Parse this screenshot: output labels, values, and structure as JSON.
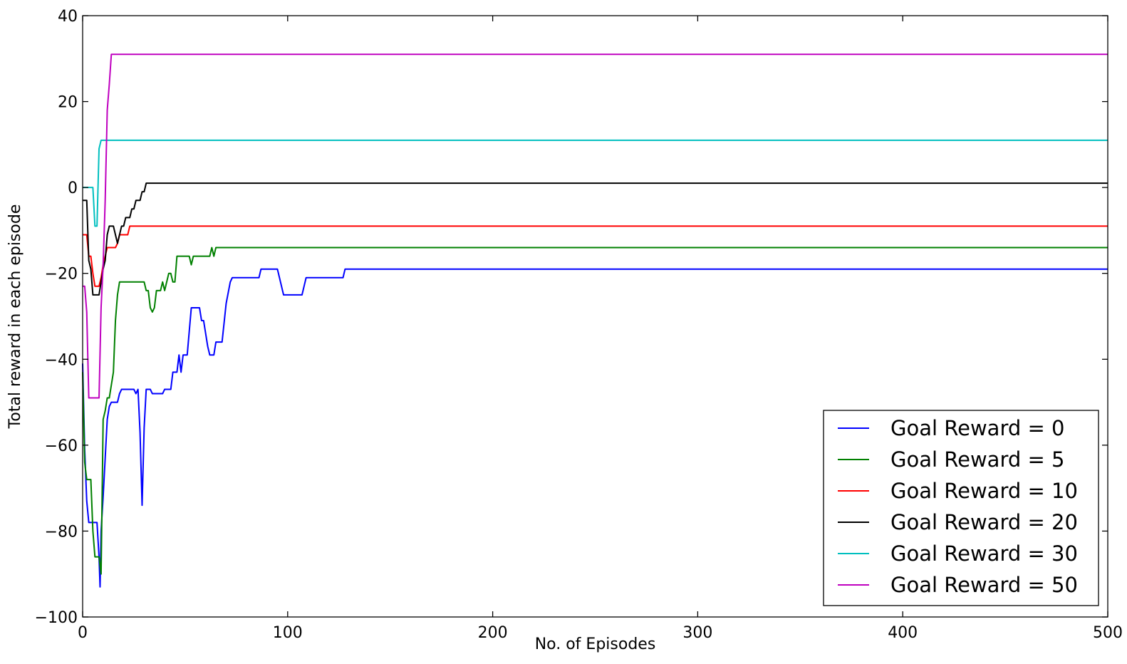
{
  "chart_data": {
    "type": "line",
    "title": "",
    "xlabel": "No. of Episodes",
    "ylabel": "Total reward in each episode",
    "xlim": [
      0,
      500
    ],
    "ylim": [
      -100,
      40
    ],
    "x_ticks": [
      0,
      100,
      200,
      300,
      400,
      500
    ],
    "y_ticks": [
      -100,
      -80,
      -60,
      -40,
      -20,
      0,
      20,
      40
    ],
    "x_tick_labels": [
      "0",
      "100",
      "200",
      "300",
      "400",
      "500"
    ],
    "y_tick_labels": [
      "−100",
      "−80",
      "−60",
      "−40",
      "−20",
      "0",
      "20",
      "40"
    ],
    "grid": false,
    "legend_position": "lower-right",
    "series": [
      {
        "name": "Goal Reward = 0",
        "color": "#0000ff",
        "points": [
          [
            0,
            -41
          ],
          [
            1,
            -61
          ],
          [
            2,
            -73
          ],
          [
            3,
            -78
          ],
          [
            4,
            -78
          ],
          [
            5,
            -78
          ],
          [
            6,
            -78
          ],
          [
            7,
            -78
          ],
          [
            8,
            -86
          ],
          [
            8.5,
            -93
          ],
          [
            9,
            -80
          ],
          [
            10,
            -72
          ],
          [
            11,
            -63
          ],
          [
            12,
            -54
          ],
          [
            13,
            -51
          ],
          [
            14,
            -50
          ],
          [
            17,
            -50
          ],
          [
            18,
            -48
          ],
          [
            19,
            -47
          ],
          [
            25,
            -47
          ],
          [
            26,
            -48
          ],
          [
            27,
            -47
          ],
          [
            28,
            -57
          ],
          [
            29,
            -74
          ],
          [
            30,
            -56
          ],
          [
            31,
            -47
          ],
          [
            33,
            -47
          ],
          [
            34,
            -48
          ],
          [
            39,
            -48
          ],
          [
            40,
            -47
          ],
          [
            43,
            -47
          ],
          [
            44,
            -43
          ],
          [
            46,
            -43
          ],
          [
            47,
            -39
          ],
          [
            48,
            -43
          ],
          [
            49,
            -39
          ],
          [
            51,
            -39
          ],
          [
            53,
            -28
          ],
          [
            57,
            -28
          ],
          [
            58,
            -31
          ],
          [
            59,
            -31
          ],
          [
            61,
            -37
          ],
          [
            62,
            -39
          ],
          [
            64,
            -39
          ],
          [
            65,
            -36
          ],
          [
            68,
            -36
          ],
          [
            70,
            -27
          ],
          [
            72,
            -22
          ],
          [
            73,
            -21
          ],
          [
            86,
            -21
          ],
          [
            87,
            -19
          ],
          [
            95,
            -19
          ],
          [
            97,
            -23
          ],
          [
            98,
            -25
          ],
          [
            107,
            -25
          ],
          [
            108,
            -23
          ],
          [
            109,
            -21
          ],
          [
            127,
            -21
          ],
          [
            128,
            -19
          ],
          [
            500,
            -19
          ]
        ]
      },
      {
        "name": "Goal Reward = 5",
        "color": "#008000",
        "points": [
          [
            0,
            -43
          ],
          [
            1,
            -64
          ],
          [
            2,
            -68
          ],
          [
            4,
            -68
          ],
          [
            5,
            -80
          ],
          [
            6,
            -86
          ],
          [
            8,
            -86
          ],
          [
            9,
            -90
          ],
          [
            10,
            -54
          ],
          [
            11,
            -52
          ],
          [
            12,
            -49
          ],
          [
            13,
            -49
          ],
          [
            14,
            -46
          ],
          [
            15,
            -43
          ],
          [
            16,
            -31
          ],
          [
            17,
            -25
          ],
          [
            18,
            -22
          ],
          [
            30,
            -22
          ],
          [
            31,
            -24
          ],
          [
            32,
            -24
          ],
          [
            33,
            -28
          ],
          [
            34,
            -29
          ],
          [
            35,
            -28
          ],
          [
            36,
            -24
          ],
          [
            38,
            -24
          ],
          [
            39,
            -22
          ],
          [
            40,
            -24
          ],
          [
            41,
            -22
          ],
          [
            42,
            -20
          ],
          [
            43,
            -20
          ],
          [
            44,
            -22
          ],
          [
            45,
            -22
          ],
          [
            46,
            -16
          ],
          [
            52,
            -16
          ],
          [
            53,
            -18
          ],
          [
            54,
            -16
          ],
          [
            62,
            -16
          ],
          [
            63,
            -14
          ],
          [
            64,
            -16
          ],
          [
            65,
            -14
          ],
          [
            500,
            -14
          ]
        ]
      },
      {
        "name": "Goal Reward = 10",
        "color": "#ff0000",
        "points": [
          [
            0,
            -11
          ],
          [
            1,
            -11
          ],
          [
            2,
            -11
          ],
          [
            3,
            -16
          ],
          [
            4,
            -16
          ],
          [
            5,
            -20
          ],
          [
            6,
            -23
          ],
          [
            8,
            -23
          ],
          [
            9,
            -21
          ],
          [
            10,
            -18
          ],
          [
            11,
            -16
          ],
          [
            12,
            -14
          ],
          [
            16,
            -14
          ],
          [
            17,
            -13
          ],
          [
            18,
            -11
          ],
          [
            22,
            -11
          ],
          [
            23,
            -9
          ],
          [
            500,
            -9
          ]
        ]
      },
      {
        "name": "Goal Reward = 20",
        "color": "#000000",
        "points": [
          [
            0,
            -3
          ],
          [
            1,
            -3
          ],
          [
            2,
            -3
          ],
          [
            3,
            -17
          ],
          [
            4,
            -19
          ],
          [
            5,
            -25
          ],
          [
            8,
            -25
          ],
          [
            9,
            -22
          ],
          [
            10,
            -19
          ],
          [
            11,
            -17
          ],
          [
            12,
            -11
          ],
          [
            13,
            -9
          ],
          [
            15,
            -9
          ],
          [
            16,
            -11
          ],
          [
            17,
            -13
          ],
          [
            18,
            -11
          ],
          [
            19,
            -9
          ],
          [
            20,
            -9
          ],
          [
            21,
            -7
          ],
          [
            23,
            -7
          ],
          [
            24,
            -5
          ],
          [
            25,
            -5
          ],
          [
            26,
            -3
          ],
          [
            28,
            -3
          ],
          [
            29,
            -1
          ],
          [
            30,
            -1
          ],
          [
            31,
            1
          ],
          [
            500,
            1
          ]
        ]
      },
      {
        "name": "Goal Reward = 30",
        "color": "#00bfbf",
        "points": [
          [
            0,
            0
          ],
          [
            1,
            0
          ],
          [
            5,
            0
          ],
          [
            6,
            -9
          ],
          [
            7,
            -9
          ],
          [
            8,
            9
          ],
          [
            9,
            11
          ],
          [
            500,
            11
          ]
        ]
      },
      {
        "name": "Goal Reward = 50",
        "color": "#bf00bf",
        "points": [
          [
            0,
            -23
          ],
          [
            1,
            -23
          ],
          [
            2,
            -29
          ],
          [
            3,
            -49
          ],
          [
            8,
            -49
          ],
          [
            9,
            -28
          ],
          [
            10,
            -18
          ],
          [
            11,
            -3
          ],
          [
            12,
            18
          ],
          [
            13,
            24
          ],
          [
            14,
            31
          ],
          [
            500,
            31
          ]
        ]
      }
    ]
  }
}
